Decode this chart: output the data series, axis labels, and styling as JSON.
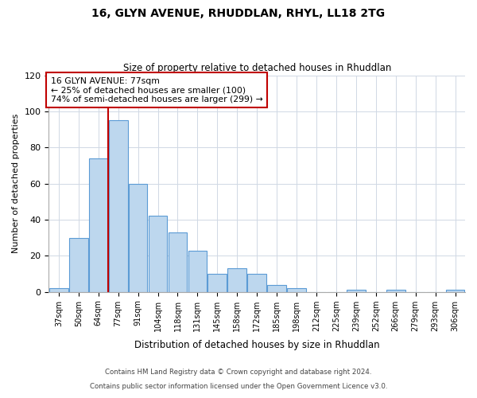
{
  "title": "16, GLYN AVENUE, RHUDDLAN, RHYL, LL18 2TG",
  "subtitle": "Size of property relative to detached houses in Rhuddlan",
  "xlabel": "Distribution of detached houses by size in Rhuddlan",
  "ylabel": "Number of detached properties",
  "categories": [
    "37sqm",
    "50sqm",
    "64sqm",
    "77sqm",
    "91sqm",
    "104sqm",
    "118sqm",
    "131sqm",
    "145sqm",
    "158sqm",
    "172sqm",
    "185sqm",
    "198sqm",
    "212sqm",
    "225sqm",
    "239sqm",
    "252sqm",
    "266sqm",
    "279sqm",
    "293sqm",
    "306sqm"
  ],
  "values": [
    2,
    30,
    74,
    95,
    60,
    42,
    33,
    23,
    10,
    13,
    10,
    4,
    2,
    0,
    0,
    1,
    0,
    1,
    0,
    0,
    1
  ],
  "bar_color": "#bdd7ee",
  "bar_edge_color": "#5b9bd5",
  "highlight_bar_index": 3,
  "highlight_line_color": "#c00000",
  "annotation_line1": "16 GLYN AVENUE: 77sqm",
  "annotation_line2": "← 25% of detached houses are smaller (100)",
  "annotation_line3": "74% of semi-detached houses are larger (299) →",
  "annotation_box_edge_color": "#c00000",
  "ylim": [
    0,
    120
  ],
  "yticks": [
    0,
    20,
    40,
    60,
    80,
    100,
    120
  ],
  "footer_line1": "Contains HM Land Registry data © Crown copyright and database right 2024.",
  "footer_line2": "Contains public sector information licensed under the Open Government Licence v3.0.",
  "background_color": "#ffffff",
  "grid_color": "#d0d8e4"
}
